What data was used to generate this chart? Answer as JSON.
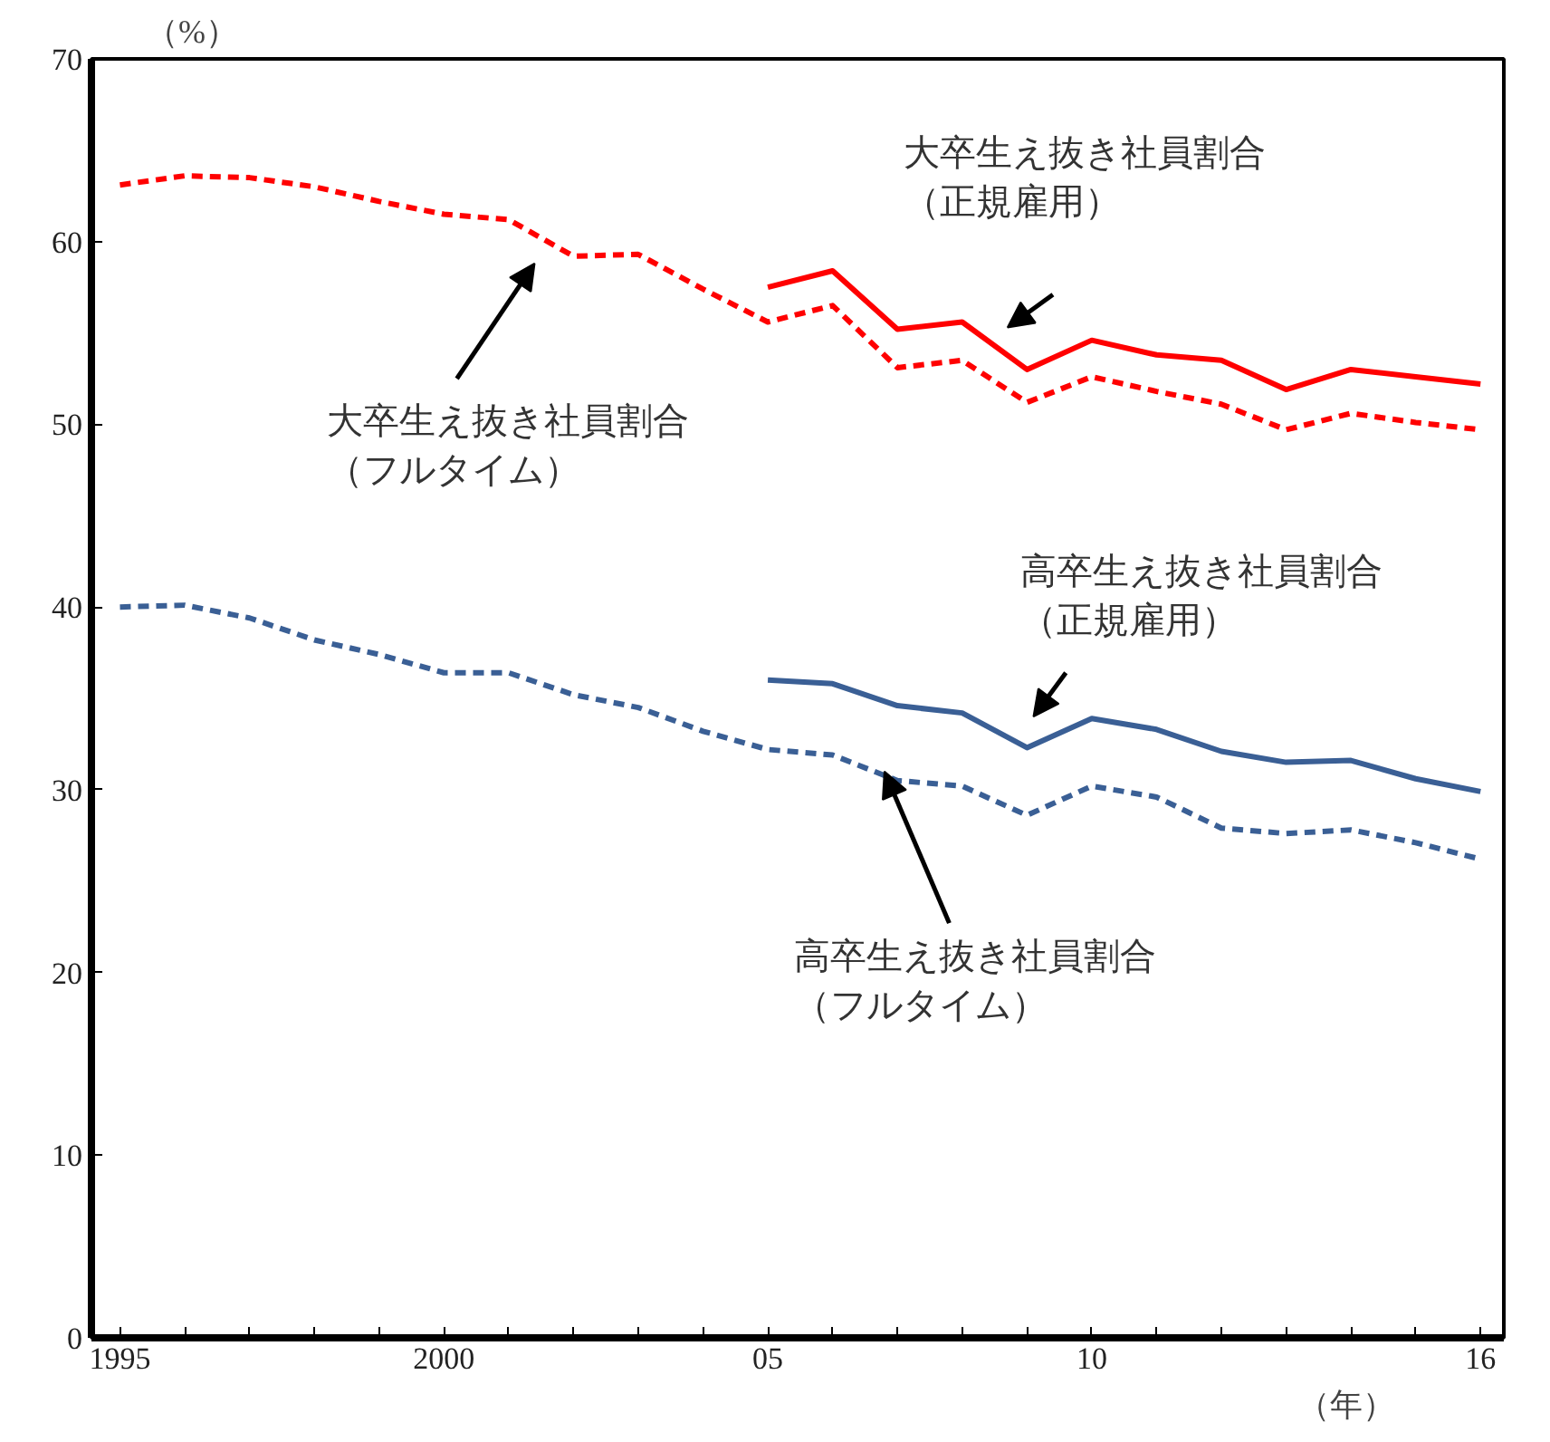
{
  "chart_data": {
    "type": "line",
    "ylabel": "（%）",
    "xlabel": "（年）",
    "xlim": [
      1994.56,
      2016.36
    ],
    "ylim": [
      0,
      70
    ],
    "xticks": [
      {
        "value": 1995,
        "label": "1995"
      },
      {
        "value": 1996,
        "label": null
      },
      {
        "value": 1997,
        "label": null
      },
      {
        "value": 1998,
        "label": null
      },
      {
        "value": 1999,
        "label": null
      },
      {
        "value": 2000,
        "label": "2000"
      },
      {
        "value": 2001,
        "label": null
      },
      {
        "value": 2002,
        "label": null
      },
      {
        "value": 2003,
        "label": null
      },
      {
        "value": 2004,
        "label": null
      },
      {
        "value": 2005,
        "label": "05"
      },
      {
        "value": 2006,
        "label": null
      },
      {
        "value": 2007,
        "label": null
      },
      {
        "value": 2008,
        "label": null
      },
      {
        "value": 2009,
        "label": null
      },
      {
        "value": 2010,
        "label": "10"
      },
      {
        "value": 2011,
        "label": null
      },
      {
        "value": 2012,
        "label": null
      },
      {
        "value": 2013,
        "label": null
      },
      {
        "value": 2014,
        "label": null
      },
      {
        "value": 2015,
        "label": null
      },
      {
        "value": 2016,
        "label": "16"
      }
    ],
    "yticks": [
      0,
      10,
      20,
      30,
      40,
      50,
      60,
      70
    ],
    "grid": false,
    "marker": "none",
    "series": [
      {
        "name": "大卒生え抜き社員割合（フルタイム）",
        "color": "#ff0000",
        "line_style": "dashed",
        "x": [
          1995,
          1996,
          1997,
          1998,
          1999,
          2000,
          2001,
          2002,
          2003,
          2004,
          2005,
          2006,
          2007,
          2008,
          2009,
          2010,
          2011,
          2012,
          2013,
          2014,
          2015,
          2016
        ],
        "values": [
          63.1,
          63.6,
          63.5,
          63.0,
          62.2,
          61.5,
          61.2,
          59.2,
          59.3,
          57.4,
          55.6,
          56.5,
          53.1,
          53.5,
          51.2,
          52.6,
          51.8,
          51.1,
          49.7,
          50.6,
          50.1,
          49.7
        ]
      },
      {
        "name": "大卒生え抜き社員割合（正規雇用）",
        "color": "#ff0000",
        "line_style": "solid",
        "x": [
          2005,
          2006,
          2007,
          2008,
          2009,
          2010,
          2011,
          2012,
          2013,
          2014,
          2015,
          2016
        ],
        "values": [
          57.5,
          58.4,
          55.2,
          55.6,
          53.0,
          54.6,
          53.8,
          53.5,
          51.9,
          53.0,
          52.6,
          52.2
        ]
      },
      {
        "name": "高卒生え抜き社員割合（フルタイム）",
        "color": "#3a5f95",
        "line_style": "dashed",
        "x": [
          1995,
          1996,
          1997,
          1998,
          1999,
          2000,
          2001,
          2002,
          2003,
          2004,
          2005,
          2006,
          2007,
          2008,
          2009,
          2010,
          2011,
          2012,
          2013,
          2014,
          2015,
          2016
        ],
        "values": [
          40.0,
          40.1,
          39.4,
          38.2,
          37.4,
          36.4,
          36.4,
          35.2,
          34.5,
          33.2,
          32.2,
          31.9,
          30.5,
          30.2,
          28.6,
          30.2,
          29.6,
          27.9,
          27.6,
          27.8,
          27.1,
          26.2
        ]
      },
      {
        "name": "高卒生え抜き社員割合（正規雇用）",
        "color": "#3a5f95",
        "line_style": "solid",
        "x": [
          2005,
          2006,
          2007,
          2008,
          2009,
          2010,
          2011,
          2012,
          2013,
          2014,
          2015,
          2016
        ],
        "values": [
          36.0,
          35.8,
          34.6,
          34.2,
          32.3,
          33.9,
          33.3,
          32.1,
          31.5,
          31.6,
          30.6,
          29.9
        ]
      }
    ]
  }
}
